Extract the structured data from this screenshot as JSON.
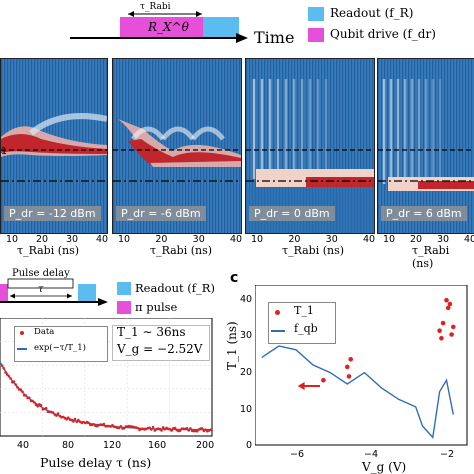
{
  "top_schematic": {
    "tau_label": "τ_Rabi",
    "gate_label": "R_X^θ",
    "time_label": "Time",
    "legend": [
      {
        "label": "Readout (f_R)",
        "color": "#5bbcf0"
      },
      {
        "label": "Qubit drive (f_dr)",
        "color": "#e64fd7"
      }
    ]
  },
  "rabi_panels": [
    {
      "power_label": "P_dr = -12 dBm"
    },
    {
      "power_label": "P_dr = -6 dBm"
    },
    {
      "power_label": "P_dr = 0 dBm"
    },
    {
      "power_label": "P_dr = 6 dBm"
    }
  ],
  "rabi_axis": {
    "xticks": [
      "10",
      "20",
      "30",
      "40"
    ],
    "xlabel": "τ_Rabi (ns)",
    "left_tick_fragment": "1"
  },
  "panel_b_schematic": {
    "pulse_delay_label": "Pulse delay",
    "tau_label": "τ",
    "legend": [
      {
        "label": "Readout (f_R)",
        "color": "#5bbcf0"
      },
      {
        "label": "π pulse",
        "color": "#e64fd7"
      }
    ]
  },
  "panel_b_plot": {
    "legend_data": "Data",
    "legend_fit": "exp(−τ/T_1)",
    "annotation_t1": "T_1 ∼ 36ns",
    "annotation_vg": "V_g = −2.52V",
    "xticks": [
      "40",
      "80",
      "120",
      "160",
      "200"
    ],
    "xlabel": "Pulse delay τ (ns)"
  },
  "panel_c": {
    "label": "c",
    "ylabel": "T_1 (ns)",
    "yticks": [
      "0",
      "10",
      "20",
      "30",
      "40"
    ],
    "xticks": [
      "−6",
      "−4",
      "−2"
    ],
    "xlabel": "V_g (V)",
    "legend_t1": "T_1",
    "legend_fqb": "f_qb"
  },
  "colors": {
    "data_red": "#dd2222",
    "fit_blue": "#2f6fb6",
    "heat_blue": "#1f5fa6",
    "heat_red": "#c0262c"
  },
  "chart_data": [
    {
      "type": "line",
      "panel": "b",
      "xlabel": "Pulse delay τ (ns)",
      "xlim": [
        0,
        200
      ],
      "series": [
        {
          "name": "Data",
          "x": [
            10,
            20,
            30,
            40,
            50,
            60,
            80,
            100,
            120,
            140,
            160,
            180,
            200
          ],
          "y": [
            0.76,
            0.58,
            0.44,
            0.33,
            0.25,
            0.19,
            0.11,
            0.065,
            0.04,
            0.025,
            0.015,
            0.01,
            0.006
          ]
        },
        {
          "name": "exp(−τ/T_1)",
          "x": [
            0,
            40,
            80,
            120,
            160,
            200
          ],
          "y": [
            1.0,
            0.33,
            0.11,
            0.036,
            0.012,
            0.004
          ]
        }
      ]
    },
    {
      "type": "scatter",
      "panel": "c",
      "xlabel": "V_g (V)",
      "ylabel": "T_1 (ns)",
      "ylim": [
        0,
        42
      ],
      "series": [
        {
          "name": "T_1",
          "x": [
            -5.2,
            -4.5,
            -4.45,
            -4.4,
            -1.8,
            -1.75,
            -1.7,
            -1.6,
            -1.55,
            -1.5,
            -1.45,
            -1.4
          ],
          "y": [
            17,
            20.5,
            18,
            22.5,
            30,
            28,
            32,
            38,
            36,
            37,
            29,
            31
          ]
        },
        {
          "name": "f_qb",
          "x": [
            -7,
            -6.5,
            -6,
            -5.5,
            -5,
            -4.5,
            -4,
            -3.5,
            -3,
            -2.5,
            -2.3,
            -2,
            -1.8,
            -1.6,
            -1.4
          ],
          "y": [
            23,
            26,
            25,
            21,
            19,
            16,
            19,
            15,
            12,
            10,
            5,
            2,
            14,
            17,
            8
          ]
        }
      ]
    }
  ]
}
